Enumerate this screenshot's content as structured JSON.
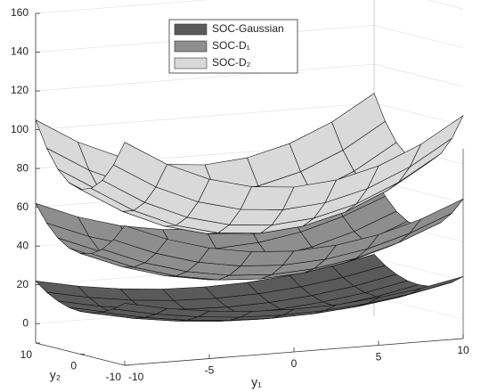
{
  "chart_data": {
    "type": "surface",
    "x_label": "y₁",
    "y_label": "y₂",
    "x": [
      -10,
      -7.5,
      -5,
      -2.5,
      0,
      2.5,
      5,
      7.5,
      10
    ],
    "y": [
      -10,
      -7.5,
      -5,
      -2.5,
      0,
      2.5,
      5,
      7.5,
      10
    ],
    "xlim": [
      -10,
      10
    ],
    "xticks": [
      -10,
      -5,
      0,
      5,
      10
    ],
    "ylim": [
      -10,
      10
    ],
    "yticks": [
      -10,
      0,
      10
    ],
    "zlim": [
      -10,
      160
    ],
    "zticks": [
      0,
      20,
      40,
      60,
      80,
      100,
      120,
      140,
      160
    ],
    "grid": true,
    "legend": "north",
    "series": [
      {
        "name": "SOC-Gaussian",
        "color": "#5a5a5a",
        "z": [
          [
            22,
            17.6,
            14.5,
            12.6,
            12,
            12.6,
            14.5,
            17.6,
            22
          ],
          [
            17.6,
            13.2,
            10.1,
            8.2,
            7.6,
            8.2,
            10.1,
            13.2,
            17.6
          ],
          [
            14.5,
            10.1,
            7,
            5.1,
            4.5,
            5.1,
            7,
            10.1,
            14.5
          ],
          [
            12.6,
            8.2,
            5.1,
            3.2,
            2.6,
            3.2,
            5.1,
            8.2,
            12.6
          ],
          [
            12,
            7.6,
            4.5,
            2.6,
            2,
            2.6,
            4.5,
            7.6,
            12
          ],
          [
            12.6,
            8.2,
            5.1,
            3.2,
            2.6,
            3.2,
            5.1,
            8.2,
            12.6
          ],
          [
            14.5,
            10.1,
            7,
            5.1,
            4.5,
            5.1,
            7,
            10.1,
            14.5
          ],
          [
            17.6,
            13.2,
            10.1,
            8.2,
            7.6,
            8.2,
            10.1,
            13.2,
            17.6
          ],
          [
            22,
            17.6,
            14.5,
            12.6,
            12,
            12.6,
            14.5,
            17.6,
            22
          ]
        ]
      },
      {
        "name": "SOC-D₁",
        "color": "#8e8e8e",
        "z": [
          [
            62,
            53.3,
            47,
            43.3,
            42,
            43.3,
            47,
            53.3,
            62
          ],
          [
            53.3,
            44.6,
            38.3,
            34.6,
            33.3,
            34.6,
            38.3,
            44.6,
            53.3
          ],
          [
            47,
            38.3,
            32,
            28.3,
            27,
            28.3,
            32,
            38.3,
            47
          ],
          [
            43.3,
            34.6,
            28.3,
            24.6,
            23.3,
            24.6,
            28.3,
            34.6,
            43.3
          ],
          [
            42,
            33.3,
            27,
            23.3,
            22,
            23.3,
            27,
            33.3,
            42
          ],
          [
            43.3,
            34.6,
            28.3,
            24.6,
            23.3,
            24.6,
            28.3,
            34.6,
            43.3
          ],
          [
            47,
            38.3,
            32,
            28.3,
            27,
            28.3,
            32,
            38.3,
            47
          ],
          [
            53.3,
            44.6,
            38.3,
            34.6,
            33.3,
            34.6,
            38.3,
            44.6,
            53.3
          ],
          [
            62,
            53.3,
            47,
            43.3,
            42,
            43.3,
            47,
            53.3,
            62
          ]
        ]
      },
      {
        "name": "SOC-D₂",
        "color": "#d9d9d9",
        "z": [
          [
            105,
            91.9,
            82.5,
            76.9,
            75,
            76.9,
            82.5,
            91.9,
            105
          ],
          [
            91.9,
            78.8,
            69.4,
            63.8,
            61.9,
            63.8,
            69.4,
            78.8,
            91.9
          ],
          [
            82.5,
            69.4,
            60,
            54.4,
            52.5,
            54.4,
            60,
            69.4,
            82.5
          ],
          [
            76.9,
            63.8,
            54.4,
            48.8,
            46.9,
            48.8,
            54.4,
            63.8,
            76.9
          ],
          [
            75,
            61.9,
            52.5,
            46.9,
            45,
            46.9,
            52.5,
            61.9,
            75
          ],
          [
            76.9,
            63.8,
            54.4,
            48.8,
            46.9,
            48.8,
            54.4,
            63.8,
            76.9
          ],
          [
            82.5,
            69.4,
            60,
            54.4,
            52.5,
            54.4,
            60,
            69.4,
            82.5
          ],
          [
            91.9,
            78.8,
            69.4,
            63.8,
            61.9,
            63.8,
            69.4,
            78.8,
            91.9
          ],
          [
            105,
            91.9,
            82.5,
            76.9,
            75,
            76.9,
            82.5,
            91.9,
            105
          ]
        ]
      }
    ]
  }
}
